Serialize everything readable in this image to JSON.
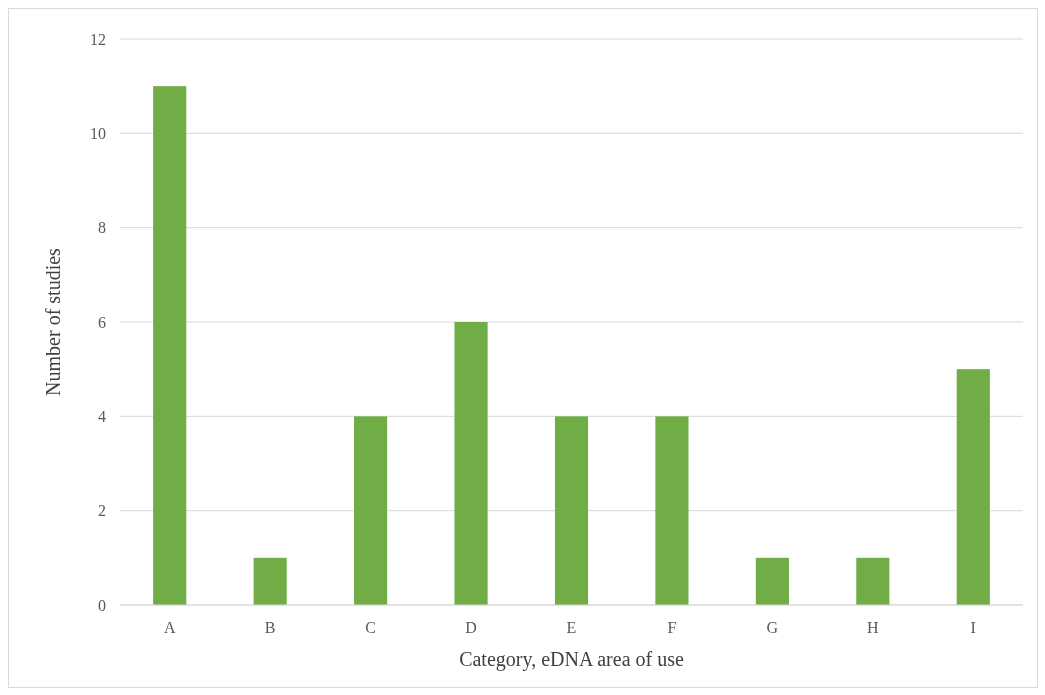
{
  "chart_data": {
    "type": "bar",
    "xlabel": "Category, eDNA area of use",
    "ylabel": "Number of studies",
    "categories": [
      "A",
      "B",
      "C",
      "D",
      "E",
      "F",
      "G",
      "H",
      "I"
    ],
    "values": [
      11,
      1,
      4,
      6,
      4,
      4,
      1,
      1,
      5
    ],
    "color": "#70ad47",
    "ylim": [
      0,
      12
    ],
    "yticks": [
      0,
      2,
      4,
      6,
      8,
      10,
      12
    ],
    "grid": "y"
  }
}
